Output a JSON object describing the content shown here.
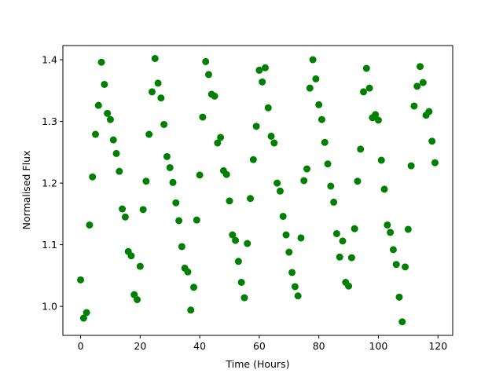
{
  "chart_data": {
    "type": "scatter",
    "x_label": "Time (Hours)",
    "y_label": "Normalised Flux",
    "color": "#008000",
    "x": [
      0,
      1,
      2,
      3,
      4,
      5,
      6,
      7,
      8,
      9,
      10,
      11,
      12,
      13,
      14,
      15,
      16,
      17,
      18,
      19,
      20,
      21,
      22,
      23,
      24,
      25,
      26,
      27,
      28,
      29,
      30,
      31,
      32,
      33,
      34,
      35,
      36,
      37,
      38,
      39,
      40,
      41,
      42,
      43,
      44,
      45,
      46,
      47,
      48,
      49,
      50,
      51,
      52,
      53,
      54,
      55,
      56,
      57,
      58,
      59,
      60,
      61,
      62,
      63,
      64,
      65,
      66,
      67,
      68,
      69,
      70,
      71,
      72,
      73,
      74,
      75,
      76,
      77,
      78,
      79,
      80,
      81,
      82,
      83,
      84,
      85,
      86,
      87,
      88,
      89,
      90,
      91,
      92,
      93,
      94,
      95,
      96,
      97,
      98,
      99,
      100,
      101,
      102,
      103,
      104,
      105,
      106,
      107,
      108,
      109,
      110,
      111,
      112,
      113,
      114,
      115,
      116,
      117,
      118,
      119
    ],
    "values": [
      1.043,
      0.981,
      0.99,
      1.132,
      1.21,
      1.279,
      1.326,
      1.396,
      1.36,
      1.313,
      1.303,
      1.27,
      1.248,
      1.219,
      1.158,
      1.145,
      1.089,
      1.082,
      1.019,
      1.011,
      1.065,
      1.157,
      1.203,
      1.279,
      1.348,
      1.402,
      1.362,
      1.338,
      1.295,
      1.243,
      1.225,
      1.201,
      1.168,
      1.139,
      1.097,
      1.062,
      1.056,
      0.994,
      1.031,
      1.14,
      1.213,
      1.307,
      1.397,
      1.376,
      1.344,
      1.341,
      1.265,
      1.274,
      1.22,
      1.214,
      1.171,
      1.116,
      1.107,
      1.073,
      1.039,
      1.014,
      1.102,
      1.175,
      1.238,
      1.292,
      1.383,
      1.364,
      1.387,
      1.322,
      1.276,
      1.265,
      1.2,
      1.187,
      1.146,
      1.116,
      1.088,
      1.055,
      1.032,
      1.017,
      1.111,
      1.204,
      1.223,
      1.354,
      1.4,
      1.369,
      1.327,
      1.303,
      1.266,
      1.231,
      1.195,
      1.169,
      1.118,
      1.08,
      1.106,
      1.039,
      1.033,
      1.079,
      1.126,
      1.203,
      1.255,
      1.348,
      1.386,
      1.354,
      1.306,
      1.311,
      1.302,
      1.237,
      1.19,
      1.132,
      1.12,
      1.092,
      1.068,
      1.015,
      0.975,
      1.064,
      1.125,
      1.228,
      1.325,
      1.357,
      1.389,
      1.363,
      1.31,
      1.316,
      1.268,
      1.233
    ],
    "xlim": [
      -5.95,
      124.95
    ],
    "xticks": [
      0,
      20,
      40,
      60,
      80,
      100,
      120
    ],
    "ylim": [
      0.953,
      1.423
    ],
    "yticks": [
      {
        "value": 1.0,
        "label": "1.0"
      },
      {
        "value": 1.1,
        "label": "1.1"
      },
      {
        "value": 1.2,
        "label": "1.2"
      },
      {
        "value": 1.3,
        "label": "1.3"
      },
      {
        "value": 1.4,
        "label": "1.4"
      }
    ]
  }
}
